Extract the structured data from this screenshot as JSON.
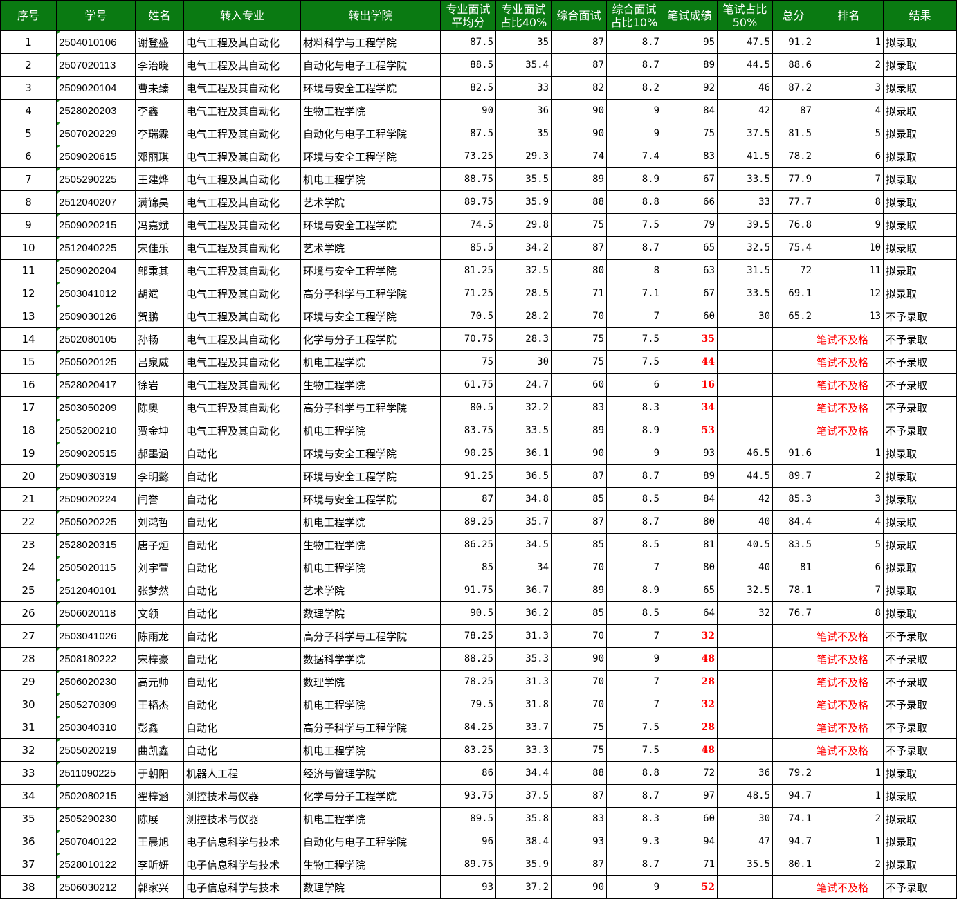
{
  "headers": [
    "序号",
    "学号",
    "姓名",
    "转入专业",
    "转出学院",
    "专业面试\n平均分",
    "专业面试\n占比40%",
    "综合面试",
    "综合面试\n占比10%",
    "笔试成绩",
    "笔试占比\n50%",
    "总分",
    "排名",
    "结果"
  ],
  "colors": {
    "header_bg": "#0a7a12",
    "fail_text": "#ff0000"
  },
  "rows": [
    [
      "1",
      "2504010106",
      "谢登盛",
      "电气工程及其自动化",
      "材料科学与工程学院",
      "87.5",
      "35",
      "87",
      "8.7",
      "95",
      "47.5",
      "91.2",
      "1",
      "拟录取"
    ],
    [
      "2",
      "2507020113",
      "李治晓",
      "电气工程及其自动化",
      "自动化与电子工程学院",
      "88.5",
      "35.4",
      "87",
      "8.7",
      "89",
      "44.5",
      "88.6",
      "2",
      "拟录取"
    ],
    [
      "3",
      "2509020104",
      "曹未臻",
      "电气工程及其自动化",
      "环境与安全工程学院",
      "82.5",
      "33",
      "82",
      "8.2",
      "92",
      "46",
      "87.2",
      "3",
      "拟录取"
    ],
    [
      "4",
      "2528020203",
      "李鑫",
      "电气工程及其自动化",
      "生物工程学院",
      "90",
      "36",
      "90",
      "9",
      "84",
      "42",
      "87",
      "4",
      "拟录取"
    ],
    [
      "5",
      "2507020229",
      "李瑞霖",
      "电气工程及其自动化",
      "自动化与电子工程学院",
      "87.5",
      "35",
      "90",
      "9",
      "75",
      "37.5",
      "81.5",
      "5",
      "拟录取"
    ],
    [
      "6",
      "2509020615",
      "邓丽琪",
      "电气工程及其自动化",
      "环境与安全工程学院",
      "73.25",
      "29.3",
      "74",
      "7.4",
      "83",
      "41.5",
      "78.2",
      "6",
      "拟录取"
    ],
    [
      "7",
      "2505290225",
      "王建烨",
      "电气工程及其自动化",
      "机电工程学院",
      "88.75",
      "35.5",
      "89",
      "8.9",
      "67",
      "33.5",
      "77.9",
      "7",
      "拟录取"
    ],
    [
      "8",
      "2512040207",
      "满锦昊",
      "电气工程及其自动化",
      "艺术学院",
      "89.75",
      "35.9",
      "88",
      "8.8",
      "66",
      "33",
      "77.7",
      "8",
      "拟录取"
    ],
    [
      "9",
      "2509020215",
      "冯嘉斌",
      "电气工程及其自动化",
      "环境与安全工程学院",
      "74.5",
      "29.8",
      "75",
      "7.5",
      "79",
      "39.5",
      "76.8",
      "9",
      "拟录取"
    ],
    [
      "10",
      "2512040225",
      "宋佳乐",
      "电气工程及其自动化",
      "艺术学院",
      "85.5",
      "34.2",
      "87",
      "8.7",
      "65",
      "32.5",
      "75.4",
      "10",
      "拟录取"
    ],
    [
      "11",
      "2509020204",
      "邬秉其",
      "电气工程及其自动化",
      "环境与安全工程学院",
      "81.25",
      "32.5",
      "80",
      "8",
      "63",
      "31.5",
      "72",
      "11",
      "拟录取"
    ],
    [
      "12",
      "2503041012",
      "胡斌",
      "电气工程及其自动化",
      "高分子科学与工程学院",
      "71.25",
      "28.5",
      "71",
      "7.1",
      "67",
      "33.5",
      "69.1",
      "12",
      "拟录取"
    ],
    [
      "13",
      "2509030126",
      "贺鹏",
      "电气工程及其自动化",
      "环境与安全工程学院",
      "70.5",
      "28.2",
      "70",
      "7",
      "60",
      "30",
      "65.2",
      "13",
      "不予录取"
    ],
    [
      "14",
      "2502080105",
      "孙畅",
      "电气工程及其自动化",
      "化学与分子工程学院",
      "70.75",
      "28.3",
      "75",
      "7.5",
      "35",
      "",
      "",
      "笔试不及格",
      "不予录取"
    ],
    [
      "15",
      "2505020125",
      "吕泉威",
      "电气工程及其自动化",
      "机电工程学院",
      "75",
      "30",
      "75",
      "7.5",
      "44",
      "",
      "",
      "笔试不及格",
      "不予录取"
    ],
    [
      "16",
      "2528020417",
      "徐岩",
      "电气工程及其自动化",
      "生物工程学院",
      "61.75",
      "24.7",
      "60",
      "6",
      "16",
      "",
      "",
      "笔试不及格",
      "不予录取"
    ],
    [
      "17",
      "2503050209",
      "陈奥",
      "电气工程及其自动化",
      "高分子科学与工程学院",
      "80.5",
      "32.2",
      "83",
      "8.3",
      "34",
      "",
      "",
      "笔试不及格",
      "不予录取"
    ],
    [
      "18",
      "2505200210",
      "贾金坤",
      "电气工程及其自动化",
      "机电工程学院",
      "83.75",
      "33.5",
      "89",
      "8.9",
      "53",
      "",
      "",
      "笔试不及格",
      "不予录取"
    ],
    [
      "19",
      "2509020515",
      "郝墨涵",
      "自动化",
      "环境与安全工程学院",
      "90.25",
      "36.1",
      "90",
      "9",
      "93",
      "46.5",
      "91.6",
      "1",
      "拟录取"
    ],
    [
      "20",
      "2509030319",
      "李明懿",
      "自动化",
      "环境与安全工程学院",
      "91.25",
      "36.5",
      "87",
      "8.7",
      "89",
      "44.5",
      "89.7",
      "2",
      "拟录取"
    ],
    [
      "21",
      "2509020224",
      "闫誉",
      "自动化",
      "环境与安全工程学院",
      "87",
      "34.8",
      "85",
      "8.5",
      "84",
      "42",
      "85.3",
      "3",
      "拟录取"
    ],
    [
      "22",
      "2505020225",
      "刘鸿哲",
      "自动化",
      "机电工程学院",
      "89.25",
      "35.7",
      "87",
      "8.7",
      "80",
      "40",
      "84.4",
      "4",
      "拟录取"
    ],
    [
      "23",
      "2528020315",
      "唐子烜",
      "自动化",
      "生物工程学院",
      "86.25",
      "34.5",
      "85",
      "8.5",
      "81",
      "40.5",
      "83.5",
      "5",
      "拟录取"
    ],
    [
      "24",
      "2505020115",
      "刘宇萱",
      "自动化",
      "机电工程学院",
      "85",
      "34",
      "70",
      "7",
      "80",
      "40",
      "81",
      "6",
      "拟录取"
    ],
    [
      "25",
      "2512040101",
      "张梦然",
      "自动化",
      "艺术学院",
      "91.75",
      "36.7",
      "89",
      "8.9",
      "65",
      "32.5",
      "78.1",
      "7",
      "拟录取"
    ],
    [
      "26",
      "2506020118",
      "文领",
      "自动化",
      "数理学院",
      "90.5",
      "36.2",
      "85",
      "8.5",
      "64",
      "32",
      "76.7",
      "8",
      "拟录取"
    ],
    [
      "27",
      "2503041026",
      "陈雨龙",
      "自动化",
      "高分子科学与工程学院",
      "78.25",
      "31.3",
      "70",
      "7",
      "32",
      "",
      "",
      "笔试不及格",
      "不予录取"
    ],
    [
      "28",
      "2508180222",
      "宋梓豪",
      "自动化",
      "数据科学学院",
      "88.25",
      "35.3",
      "90",
      "9",
      "48",
      "",
      "",
      "笔试不及格",
      "不予录取"
    ],
    [
      "29",
      "2506020230",
      "高元帅",
      "自动化",
      "数理学院",
      "78.25",
      "31.3",
      "70",
      "7",
      "28",
      "",
      "",
      "笔试不及格",
      "不予录取"
    ],
    [
      "30",
      "2505270309",
      "王韬杰",
      "自动化",
      "机电工程学院",
      "79.5",
      "31.8",
      "70",
      "7",
      "32",
      "",
      "",
      "笔试不及格",
      "不予录取"
    ],
    [
      "31",
      "2503040310",
      "彭鑫",
      "自动化",
      "高分子科学与工程学院",
      "84.25",
      "33.7",
      "75",
      "7.5",
      "28",
      "",
      "",
      "笔试不及格",
      "不予录取"
    ],
    [
      "32",
      "2505020219",
      "曲凯鑫",
      "自动化",
      "机电工程学院",
      "83.25",
      "33.3",
      "75",
      "7.5",
      "48",
      "",
      "",
      "笔试不及格",
      "不予录取"
    ],
    [
      "33",
      "2511090225",
      "于朝阳",
      "机器人工程",
      "经济与管理学院",
      "86",
      "34.4",
      "88",
      "8.8",
      "72",
      "36",
      "79.2",
      "1",
      "拟录取"
    ],
    [
      "34",
      "2502080215",
      "翟梓涵",
      "测控技术与仪器",
      "化学与分子工程学院",
      "93.75",
      "37.5",
      "87",
      "8.7",
      "97",
      "48.5",
      "94.7",
      "1",
      "拟录取"
    ],
    [
      "35",
      "2505290230",
      "陈展",
      "测控技术与仪器",
      "机电工程学院",
      "89.5",
      "35.8",
      "83",
      "8.3",
      "60",
      "30",
      "74.1",
      "2",
      "拟录取"
    ],
    [
      "36",
      "2507040122",
      "王晨旭",
      "电子信息科学与技术",
      "自动化与电子工程学院",
      "96",
      "38.4",
      "93",
      "9.3",
      "94",
      "47",
      "94.7",
      "1",
      "拟录取"
    ],
    [
      "37",
      "2528010122",
      "李昕妍",
      "电子信息科学与技术",
      "生物工程学院",
      "89.75",
      "35.9",
      "87",
      "8.7",
      "71",
      "35.5",
      "80.1",
      "2",
      "拟录取"
    ],
    [
      "38",
      "2506030212",
      "郭家兴",
      "电子信息科学与技术",
      "数理学院",
      "93",
      "37.2",
      "90",
      "9",
      "52",
      "",
      "",
      "笔试不及格",
      "不予录取"
    ]
  ]
}
